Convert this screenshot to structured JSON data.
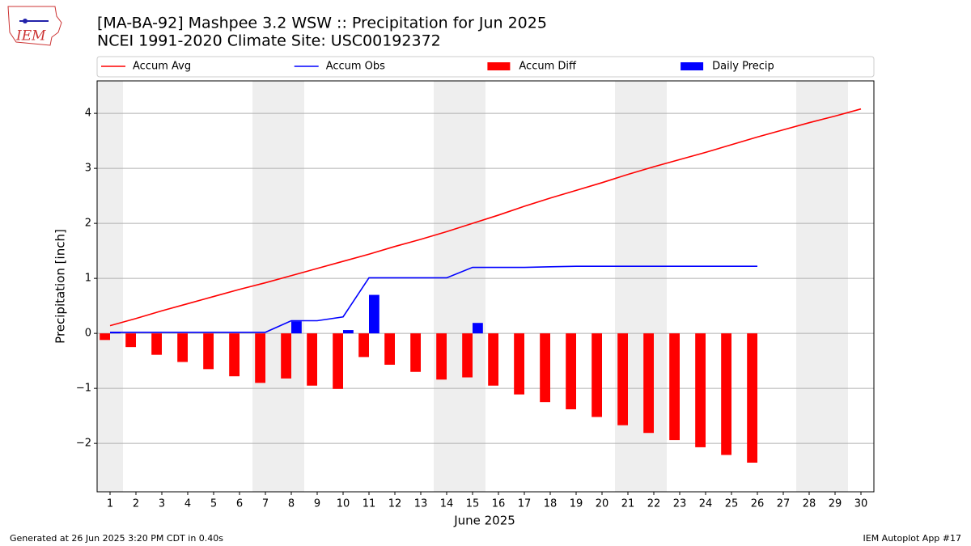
{
  "chart_data": {
    "type": "combo",
    "title": "[MA-BA-92] Mashpee 3.2 WSW :: Precipitation for Jun 2025",
    "subtitle": "NCEI 1991-2020 Climate Site: USC00192372",
    "logo_text": "IEM",
    "x_label": "June 2025",
    "y_label": "Precipitation [inch]",
    "footer_left": "Generated at 26 Jun 2025 3:20 PM CDT in 0.40s",
    "footer_right": "IEM Autoplot App #17",
    "x": [
      1,
      2,
      3,
      4,
      5,
      6,
      7,
      8,
      9,
      10,
      11,
      12,
      13,
      14,
      15,
      16,
      17,
      18,
      19,
      20,
      21,
      22,
      23,
      24,
      25,
      26,
      27,
      28,
      29,
      30
    ],
    "xlim": [
      0.5,
      30.5
    ],
    "xticks": [
      1,
      2,
      3,
      4,
      5,
      6,
      7,
      8,
      9,
      10,
      11,
      12,
      13,
      14,
      15,
      16,
      17,
      18,
      19,
      20,
      21,
      22,
      23,
      24,
      25,
      26,
      27,
      28,
      29,
      30
    ],
    "ylim": [
      -2.88,
      4.59
    ],
    "yticks": [
      {
        "value": -2,
        "label": "−2"
      },
      {
        "value": -1,
        "label": "−1"
      },
      0,
      1,
      2,
      3,
      4
    ],
    "grid": true,
    "shaded_ranges": [
      [
        0.5,
        1.5
      ],
      [
        6.5,
        8.5
      ],
      [
        13.5,
        15.5
      ],
      [
        20.5,
        22.5
      ],
      [
        27.5,
        29.5
      ]
    ],
    "shade_color": "#eeeeee",
    "legend_loc": "top",
    "series": [
      {
        "name": "Accum Avg",
        "type": "line",
        "color": "#ff0000",
        "values": [
          0.14,
          0.27,
          0.41,
          0.54,
          0.67,
          0.8,
          0.92,
          1.05,
          1.18,
          1.31,
          1.44,
          1.58,
          1.71,
          1.85,
          2.0,
          2.15,
          2.31,
          2.46,
          2.6,
          2.74,
          2.89,
          3.03,
          3.16,
          3.29,
          3.43,
          3.57,
          3.7,
          3.83,
          3.95,
          4.08
        ]
      },
      {
        "name": "Accum Obs",
        "type": "line",
        "color": "#0000ff",
        "values": [
          0.02,
          0.02,
          0.02,
          0.02,
          0.02,
          0.02,
          0.02,
          0.23,
          0.23,
          0.3,
          1.01,
          1.01,
          1.01,
          1.01,
          1.2,
          1.2,
          1.2,
          1.21,
          1.22,
          1.22,
          1.22,
          1.22,
          1.22,
          1.22,
          1.22,
          1.22,
          null,
          null,
          null,
          null
        ]
      },
      {
        "name": "Accum Diff",
        "type": "bar",
        "color": "#ff0000",
        "values": [
          -0.12,
          -0.25,
          -0.39,
          -0.52,
          -0.65,
          -0.78,
          -0.9,
          -0.82,
          -0.95,
          -1.01,
          -0.43,
          -0.57,
          -0.7,
          -0.84,
          -0.8,
          -0.95,
          -1.11,
          -1.25,
          -1.38,
          -1.52,
          -1.67,
          -1.81,
          -1.94,
          -2.07,
          -2.21,
          -2.35,
          null,
          null,
          null,
          null
        ]
      },
      {
        "name": "Daily Precip",
        "type": "bar",
        "color": "#0000ff",
        "values": [
          0.02,
          0,
          0,
          0,
          0,
          0,
          0,
          0.22,
          0,
          0.06,
          0.7,
          0,
          0,
          0,
          0.19,
          0,
          0,
          0,
          0,
          0,
          0,
          0,
          0,
          0,
          0,
          0,
          null,
          null,
          null,
          null
        ]
      }
    ]
  }
}
